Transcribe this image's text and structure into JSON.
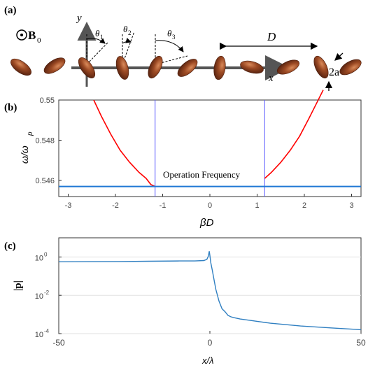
{
  "figure": {
    "panels": [
      {
        "label": "(a)",
        "symbols": {
          "field": "B",
          "field_sub": "0",
          "y_axis": "y",
          "x_axis": "x",
          "theta1": "θ",
          "theta1_sub": "1",
          "theta2": "θ",
          "theta2_sub": "2",
          "theta3": "θ",
          "theta3_sub": "3",
          "spacing": "D",
          "size": "2a"
        }
      },
      {
        "label": "(b)",
        "annotation": "Operation Frequency",
        "xlabel": "βD",
        "ylabel_main": "ω/ω",
        "ylabel_sub": "p"
      },
      {
        "label": "(c)",
        "xlabel": "x/λ",
        "ylabel": "|p|"
      }
    ]
  },
  "chart_data": [
    {
      "type": "line",
      "xlim": [
        -3.2,
        3.2
      ],
      "ylim": [
        0.5452,
        0.55
      ],
      "xticks": [
        -3,
        -2,
        -1,
        0,
        1,
        2,
        3
      ],
      "xtick_labels": [
        "-3",
        "-2",
        "-1",
        "0",
        "1",
        "2",
        "3"
      ],
      "yticks": [
        0.546,
        0.548,
        0.55
      ],
      "ytick_labels": [
        "0.546",
        "0.548",
        "0.55"
      ],
      "grid": false,
      "colors": {
        "band": "#ff0000",
        "operation": "#1f77d4",
        "gap_edge": "#5b5bff"
      },
      "series": [
        {
          "x": [
            -2.46,
            -2.3,
            -2.1,
            -1.9,
            -1.7,
            -1.5,
            -1.35,
            -1.25,
            -1.16
          ],
          "y": [
            0.55,
            0.5492,
            0.5483,
            0.5475,
            0.5469,
            0.5464,
            0.5461,
            0.5458,
            0.5457
          ]
        },
        {
          "x": [
            1.16,
            1.3,
            1.5,
            1.7,
            1.9,
            2.1,
            2.25,
            2.4
          ],
          "y": [
            0.5461,
            0.5464,
            0.5469,
            0.5475,
            0.5482,
            0.5491,
            0.5498,
            0.5505
          ]
        },
        {
          "name": "Operation Frequency",
          "x": [
            -3.2,
            3.2
          ],
          "y": [
            0.5457,
            0.5457
          ]
        }
      ],
      "vlines": [
        -1.16,
        1.16
      ]
    },
    {
      "type": "line",
      "xlim": [
        -50,
        50
      ],
      "ylim": [
        0.0001,
        10
      ],
      "yscale": "log",
      "xticks": [
        -50,
        0,
        50
      ],
      "xtick_labels": [
        "-50",
        "0",
        "50"
      ],
      "yticks": [
        1,
        0.01,
        0.0001
      ],
      "ytick_labels": [
        {
          "base": "10",
          "exp": "0"
        },
        {
          "base": "10",
          "exp": "-2"
        },
        {
          "base": "10",
          "exp": "-4"
        }
      ],
      "grid": true,
      "colors": {
        "line": "#2f7fc1"
      },
      "series": [
        {
          "x": [
            -50,
            -40,
            -30,
            -20,
            -10,
            -5,
            -2,
            -1,
            -0.5,
            -0.2,
            0,
            0.3,
            0.8,
            1.5,
            2,
            3,
            4,
            5,
            6,
            7,
            8,
            10,
            15,
            20,
            30,
            40,
            50
          ],
          "y": [
            0.56,
            0.57,
            0.58,
            0.6,
            0.62,
            0.62,
            0.65,
            0.75,
            1.1,
            2.0,
            1.2,
            0.5,
            0.2,
            0.05,
            0.02,
            0.005,
            0.002,
            0.0014,
            0.0009,
            0.00075,
            0.00068,
            0.00058,
            0.00045,
            0.00035,
            0.00025,
            0.0002,
            0.00016
          ]
        }
      ]
    }
  ]
}
